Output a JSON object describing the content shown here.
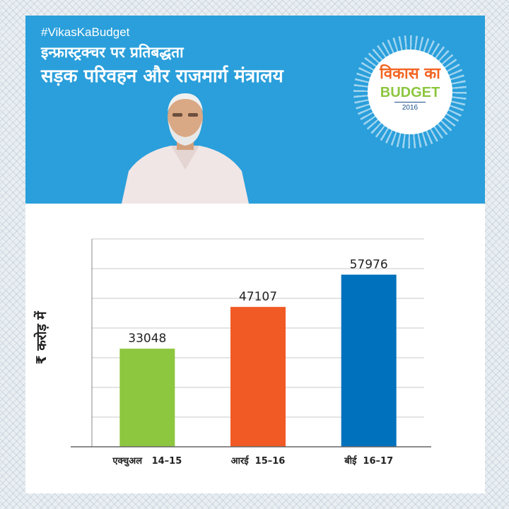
{
  "banner": {
    "hashtag": "#VikasKaBudget",
    "title_line1": "इन्फ्रास्ट्रक्चर पर प्रतिबद्धता",
    "title_line2": "सड़क परिवहन और राजमार्ग मंत्रालय",
    "background_color": "#2a9fdb"
  },
  "seal": {
    "hindi_text": "विकास का",
    "english_text": "BUDGET",
    "year": "2016"
  },
  "chart_data": {
    "type": "bar",
    "categories": [
      "एक्चुअल   14–15",
      "आरई  15–16",
      "बीई  16–17"
    ],
    "values": [
      33048,
      47107,
      57976
    ],
    "data_labels": [
      "33048",
      "47107",
      "57976"
    ],
    "colors": [
      "#8dc63f",
      "#f15a24",
      "#0071bc"
    ],
    "ylabel": "₹ करोड़ में",
    "ylim": [
      0,
      70000
    ],
    "grid": true
  }
}
